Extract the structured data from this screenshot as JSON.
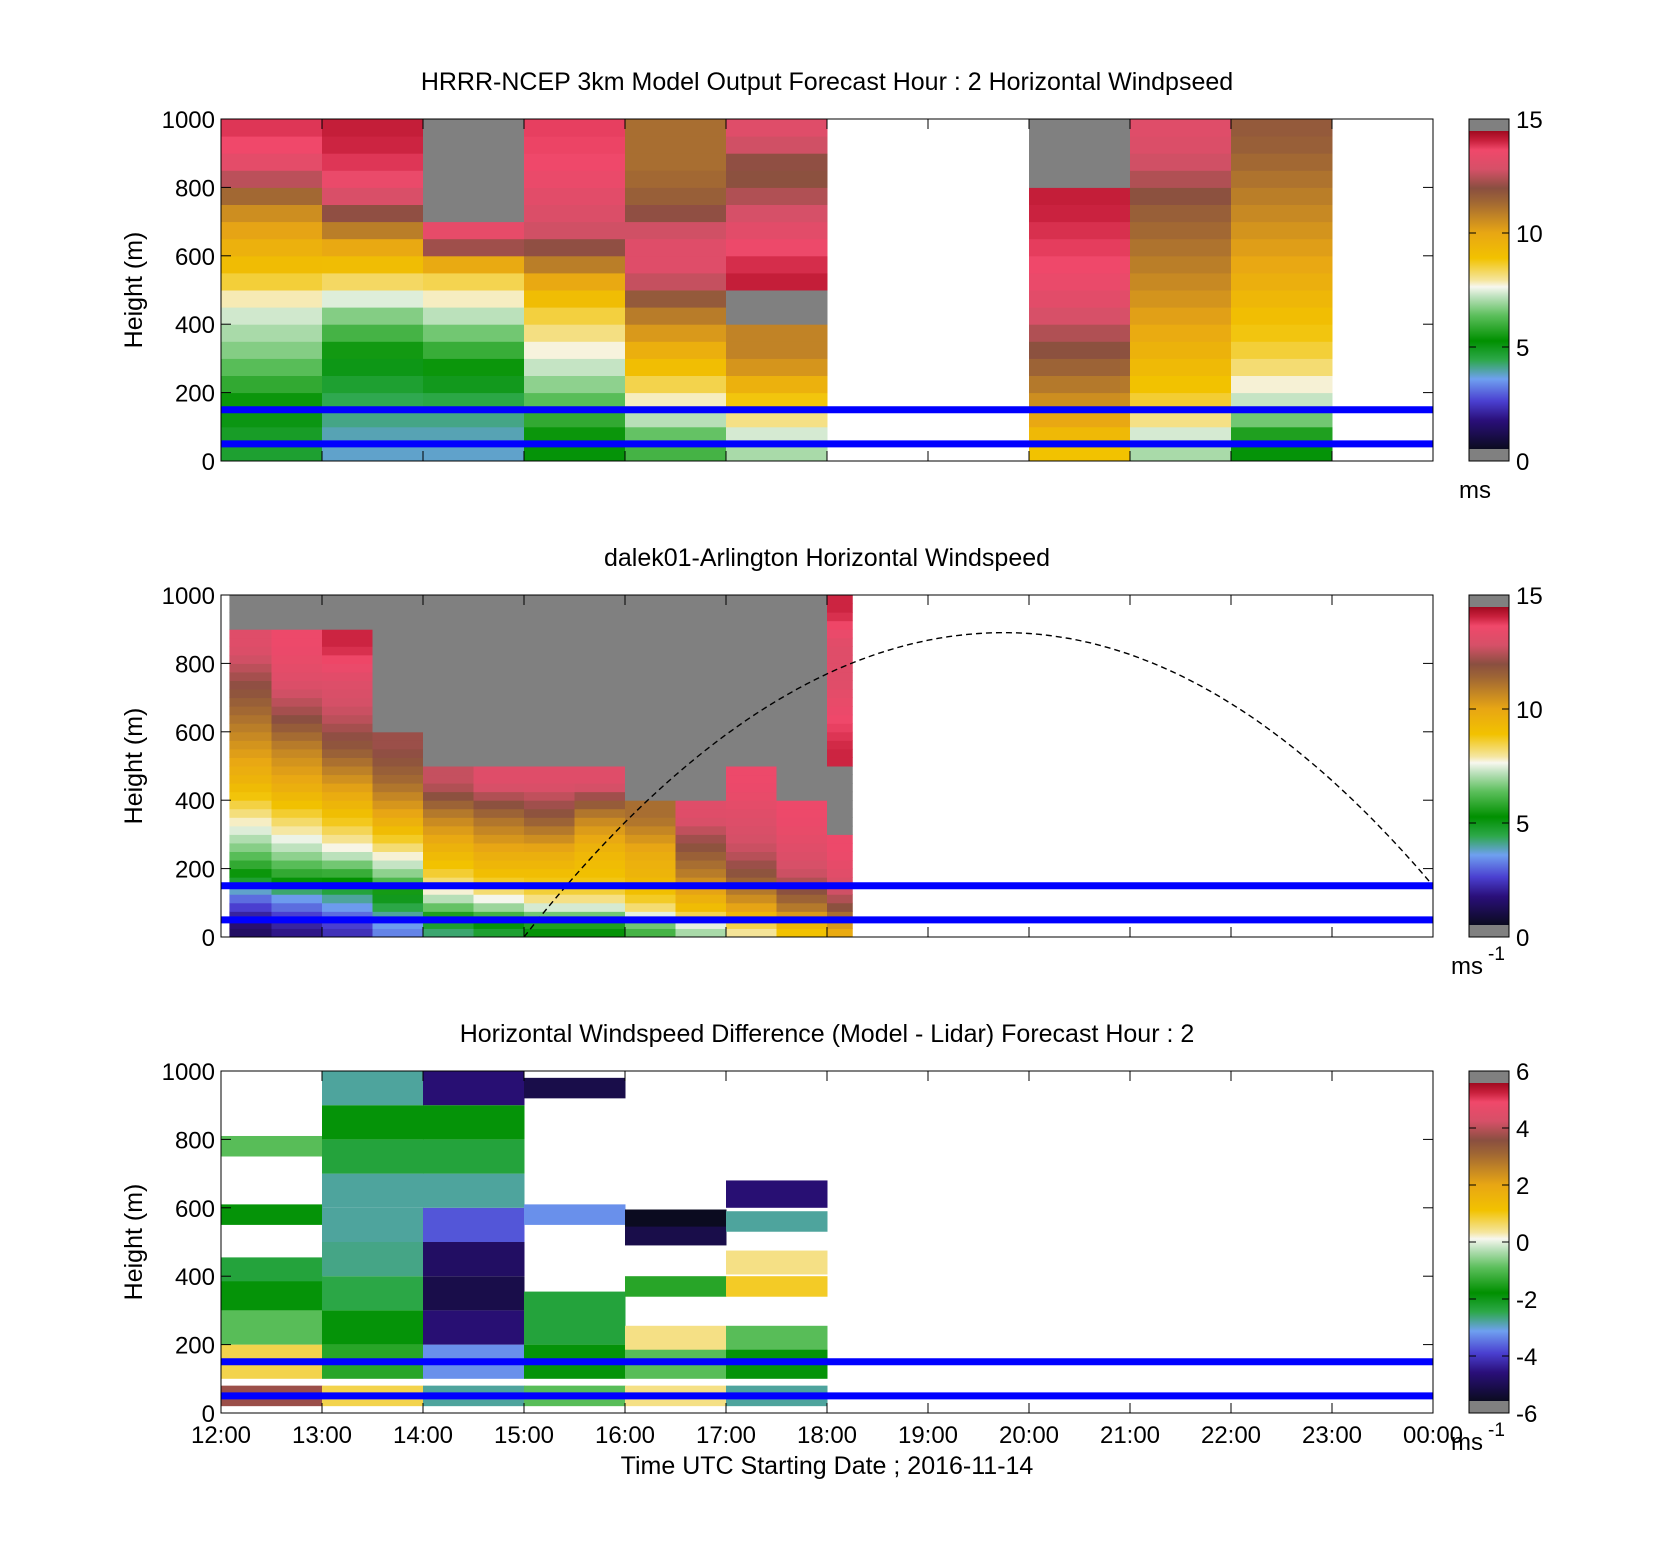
{
  "figure": {
    "xlabel": "Time UTC  Starting Date ; 2016-11-14",
    "xticklabels": [
      "12:00",
      "13:00",
      "14:00",
      "15:00",
      "16:00",
      "17:00",
      "18:00",
      "19:00",
      "20:00",
      "21:00",
      "22:00",
      "23:00",
      "00:00"
    ]
  },
  "colors": {
    "reference_lines": "#0000ff",
    "missing_data": "#808080",
    "curve": "#000000"
  },
  "chart_data": [
    {
      "type": "heatmap",
      "title": "HRRR-NCEP 3km Model Output   Forecast Hour : 2 Horizontal Windpseed",
      "xlabel": "",
      "ylabel": "Height (m)",
      "xlim": [
        "12:00",
        "00:00"
      ],
      "ylim": [
        0,
        1000
      ],
      "yticks": [
        "0",
        "200",
        "400",
        "600",
        "800",
        "1000"
      ],
      "colorbar": {
        "range": [
          0,
          15
        ],
        "ticks": [
          "0",
          "5",
          "10",
          "15"
        ],
        "label": "ms"
      },
      "reference_lines_m": [
        50,
        150
      ],
      "hours_with_data": [
        "12:00",
        "13:00",
        "14:00",
        "15:00",
        "16:00",
        "17:00",
        "20:00",
        "21:00",
        "22:00"
      ],
      "approx_values_ms": {
        "12:00": {
          "heights_m": [
            50,
            150,
            300,
            450,
            550,
            650,
            750,
            850,
            950
          ],
          "windspeed": [
            4.5,
            5,
            6.5,
            7.5,
            9,
            10,
            11,
            13.5,
            14.3
          ]
        },
        "13:00": {
          "heights_m": [
            50,
            150,
            300,
            450,
            550,
            650,
            750,
            850,
            950
          ],
          "windspeed": [
            3.5,
            4,
            5,
            7,
            8.8,
            10.5,
            13,
            14.2,
            14.6
          ]
        },
        "14:00": {
          "heights_m": [
            50,
            150,
            300,
            450,
            550,
            650,
            750,
            850,
            950
          ],
          "windspeed": [
            3.5,
            4,
            5.5,
            7.5,
            8.8,
            13.8,
            null,
            null,
            null
          ]
        },
        "15:00": {
          "heights_m": [
            50,
            150,
            300,
            450,
            550,
            650,
            750,
            850,
            950
          ],
          "windspeed": [
            5,
            6,
            7.5,
            8.8,
            10.5,
            13,
            13.5,
            14,
            14.2
          ]
        },
        "16:00": {
          "heights_m": [
            50,
            150,
            300,
            450,
            550,
            650,
            750,
            850,
            950
          ],
          "windspeed": [
            6,
            7.5,
            9.5,
            11.5,
            13.5,
            13.5,
            12,
            11.5,
            11.5
          ]
        },
        "17:00": {
          "heights_m": [
            50,
            150,
            300,
            450,
            550,
            650,
            750,
            850,
            950
          ],
          "windspeed": [
            7,
            8.5,
            11,
            null,
            14.6,
            13.8,
            13,
            12,
            13.5
          ]
        },
        "20:00": {
          "heights_m": [
            50,
            150,
            300,
            450,
            550,
            650,
            750,
            850,
            950
          ],
          "windspeed": [
            9,
            10.5,
            12,
            13.5,
            14,
            14.3,
            14.6,
            null,
            null
          ]
        },
        "21:00": {
          "heights_m": [
            50,
            150,
            300,
            450,
            550,
            650,
            750,
            850,
            950
          ],
          "windspeed": [
            7,
            8.5,
            9.5,
            10.5,
            11,
            11.5,
            12,
            13,
            13.5
          ]
        },
        "22:00": {
          "heights_m": [
            50,
            150,
            300,
            450,
            550,
            650,
            750,
            850,
            950
          ],
          "windspeed": [
            5,
            7,
            8.5,
            9.3,
            10,
            10.5,
            11,
            11.5,
            12
          ]
        }
      }
    },
    {
      "type": "heatmap",
      "title": "dalek01-Arlington  Horizontal Windspeed",
      "xlabel": "",
      "ylabel": "Height (m)",
      "xlim": [
        "12:00",
        "00:00"
      ],
      "ylim": [
        0,
        1000
      ],
      "yticks": [
        "0",
        "200",
        "400",
        "600",
        "800",
        "1000"
      ],
      "colorbar": {
        "range": [
          0,
          15
        ],
        "ticks": [
          "0",
          "5",
          "10",
          "15"
        ],
        "label": "ms-1"
      },
      "reference_lines_m": [
        50,
        150
      ],
      "data_time_range": [
        "12:00",
        "18:15"
      ],
      "curve": {
        "style": "dashed",
        "x_hours": [
          15.0,
          19.75,
          24.0
        ],
        "y_m": [
          0,
          890,
          150
        ]
      },
      "approx_column_profiles_ms": [
        {
          "time": "12:05",
          "heights_m": [
            25,
            75,
            125,
            175,
            250,
            350,
            450,
            550,
            650,
            750,
            850,
            950
          ],
          "windspeed": [
            1,
            2,
            3,
            5,
            6.5,
            8,
            9.5,
            10.5,
            11.5,
            12.5,
            13.5,
            null
          ]
        },
        {
          "time": "12:30",
          "heights_m": [
            25,
            75,
            125,
            175,
            250,
            350,
            450,
            550,
            650,
            750,
            850,
            950
          ],
          "windspeed": [
            1.5,
            2.5,
            3.5,
            5.5,
            7,
            8.5,
            10,
            11,
            12.5,
            13.5,
            14,
            null
          ]
        },
        {
          "time": "13:00",
          "heights_m": [
            25,
            75,
            125,
            175,
            250,
            350,
            450,
            550,
            650,
            750,
            850,
            950
          ],
          "windspeed": [
            2,
            3,
            4,
            5.5,
            7.5,
            9,
            10.5,
            12,
            13,
            13.5,
            14.5,
            null
          ]
        },
        {
          "time": "13:30",
          "heights_m": [
            25,
            75,
            125,
            175,
            250,
            350,
            450,
            550,
            650,
            750,
            850,
            950
          ],
          "windspeed": [
            3,
            4,
            5,
            6.5,
            8,
            10,
            11.5,
            12.5,
            null,
            null,
            null,
            null
          ]
        },
        {
          "time": "14:00",
          "heights_m": [
            25,
            75,
            125,
            175,
            250,
            350,
            450,
            550,
            650,
            750,
            850,
            950
          ],
          "windspeed": [
            4,
            6,
            7.5,
            8.5,
            9.5,
            11,
            13,
            null,
            null,
            null,
            null,
            null
          ]
        },
        {
          "time": "14:30",
          "heights_m": [
            25,
            75,
            125,
            175,
            250,
            350,
            450,
            550,
            650,
            750,
            850,
            950
          ],
          "windspeed": [
            4.5,
            6.5,
            8,
            9,
            10,
            11.5,
            13.5,
            null,
            null,
            null,
            null,
            null
          ]
        },
        {
          "time": "15:00",
          "heights_m": [
            25,
            75,
            125,
            175,
            250,
            350,
            450,
            550,
            650,
            750,
            850,
            950
          ],
          "windspeed": [
            5,
            7,
            8.5,
            9,
            10,
            12,
            13.5,
            null,
            null,
            null,
            null,
            null
          ]
        },
        {
          "time": "15:30",
          "heights_m": [
            25,
            75,
            125,
            175,
            250,
            350,
            450,
            550,
            650,
            750,
            850,
            950
          ],
          "windspeed": [
            5,
            7,
            8.5,
            9,
            9.5,
            11,
            13.5,
            null,
            null,
            null,
            null,
            null
          ]
        },
        {
          "time": "16:00",
          "heights_m": [
            25,
            75,
            125,
            175,
            250,
            350,
            450,
            550,
            650,
            750,
            850,
            950
          ],
          "windspeed": [
            6,
            8,
            9,
            9.5,
            10,
            11.5,
            null,
            null,
            null,
            null,
            null,
            null
          ]
        },
        {
          "time": "16:30",
          "heights_m": [
            25,
            75,
            125,
            175,
            250,
            350,
            450,
            550,
            650,
            750,
            850,
            950
          ],
          "windspeed": [
            7,
            9,
            10,
            11,
            12,
            13.5,
            null,
            null,
            null,
            null,
            null,
            null
          ]
        },
        {
          "time": "17:00",
          "heights_m": [
            25,
            75,
            125,
            175,
            250,
            350,
            450,
            550,
            650,
            750,
            850,
            950
          ],
          "windspeed": [
            8,
            10,
            11,
            12,
            13,
            13.5,
            14,
            null,
            null,
            null,
            null,
            null
          ]
        },
        {
          "time": "17:30",
          "heights_m": [
            25,
            75,
            125,
            175,
            250,
            350,
            450,
            550,
            650,
            750,
            850,
            950
          ],
          "windspeed": [
            9,
            11,
            12,
            13,
            13.5,
            14,
            null,
            null,
            null,
            null,
            null,
            null
          ]
        },
        {
          "time": "18:00",
          "heights_m": [
            25,
            75,
            125,
            175,
            250,
            350,
            450,
            550,
            650,
            750,
            850,
            950
          ],
          "windspeed": [
            10,
            12,
            13,
            13.5,
            14,
            null,
            null,
            14.5,
            14,
            13.5,
            13.5,
            14.5
          ]
        }
      ]
    },
    {
      "type": "heatmap",
      "title": "Horizontal Windspeed Difference (Model - Lidar) Forecast Hour : 2",
      "xlabel": "Time UTC  Starting Date ; 2016-11-14",
      "ylabel": "Height (m)",
      "xlim": [
        "12:00",
        "00:00"
      ],
      "ylim": [
        0,
        1000
      ],
      "yticks": [
        "0",
        "200",
        "400",
        "600",
        "800",
        "1000"
      ],
      "colorbar": {
        "range": [
          -6,
          6
        ],
        "ticks": [
          "-6",
          "-4",
          "-2",
          "0",
          "2",
          "4",
          "6"
        ],
        "label": "ms-1"
      },
      "reference_lines_m": [
        50,
        150
      ],
      "approx_column_profiles_ms": [
        {
          "hour": "12:00",
          "heights_m": [
            50,
            150,
            250,
            350,
            420,
            580,
            780
          ],
          "difference": [
            4,
            0.8,
            -1,
            -2,
            -2.5,
            -2,
            -1
          ]
        },
        {
          "hour": "13:00",
          "heights_m": [
            50,
            150,
            250,
            350,
            450,
            550,
            650,
            750,
            850,
            950
          ],
          "difference": [
            0.8,
            -1.5,
            -2,
            -2.6,
            -2.9,
            -3,
            -3,
            -2.5,
            -2,
            -3
          ]
        },
        {
          "hour": "14:00",
          "heights_m": [
            50,
            150,
            250,
            350,
            450,
            550,
            650,
            750,
            850,
            950
          ],
          "difference": [
            -3,
            -3.5,
            -5,
            -5.5,
            -5.2,
            -4,
            -3,
            -2.5,
            -2,
            -5
          ]
        },
        {
          "hour": "15:00",
          "heights_m": [
            50,
            150,
            250,
            320,
            580,
            950
          ],
          "difference": [
            -1,
            -2,
            -2.5,
            -2.5,
            -3.5,
            -5.5
          ]
        },
        {
          "hour": "16:00",
          "heights_m": [
            50,
            150,
            220,
            370,
            520,
            570
          ],
          "difference": [
            0.5,
            -1,
            0.5,
            -1.5,
            -5.5,
            -6
          ]
        },
        {
          "hour": "17:00",
          "heights_m": [
            50,
            150,
            220,
            370,
            440,
            560,
            640
          ],
          "difference": [
            -3,
            -2,
            -1,
            1,
            0.5,
            -3,
            -5
          ]
        }
      ]
    }
  ]
}
